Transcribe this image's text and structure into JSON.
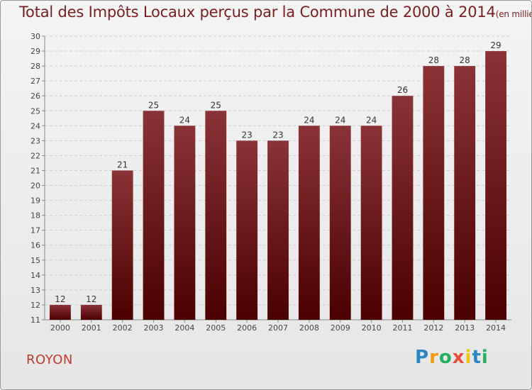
{
  "header": {
    "title": "Total des Impôts Locaux perçus par la Commune de 2000 à 2014",
    "unit": "(en milliers d'€)"
  },
  "footer": {
    "commune": "ROYON",
    "brand": [
      "P",
      "r",
      "o",
      "x",
      "i",
      "t",
      "i"
    ],
    "brand_colors": [
      "#2e86c1",
      "#f39c12",
      "#27ae60",
      "#e74c3c",
      "#f1c40f",
      "#2e86c1",
      "#27ae60"
    ]
  },
  "chart_data": {
    "type": "bar",
    "title": "Total des Impôts Locaux perçus par la Commune de 2000 à 2014",
    "xlabel": "",
    "ylabel": "",
    "categories": [
      "2000",
      "2001",
      "2002",
      "2003",
      "2004",
      "2005",
      "2006",
      "2007",
      "2008",
      "2009",
      "2010",
      "2011",
      "2012",
      "2013",
      "2014"
    ],
    "values": [
      12,
      12,
      21,
      25,
      24,
      25,
      23,
      23,
      24,
      24,
      24,
      26,
      28,
      28,
      29
    ],
    "ylim": [
      11,
      30
    ],
    "yticks": [
      11,
      12,
      13,
      14,
      15,
      16,
      17,
      18,
      19,
      20,
      21,
      22,
      23,
      24,
      25,
      26,
      27,
      28,
      29,
      30
    ],
    "grid": true,
    "bar_color_top": "#8a3338",
    "bar_color_bottom": "#4a0000"
  }
}
